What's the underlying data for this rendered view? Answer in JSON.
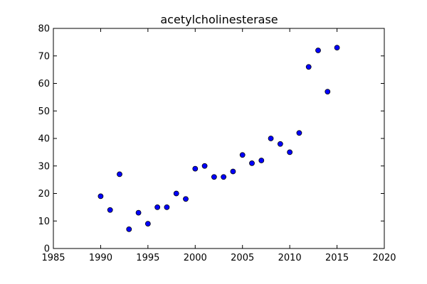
{
  "chart_data": {
    "type": "scatter",
    "title": "acetylcholinesterase",
    "xlabel": "",
    "ylabel": "",
    "xlim": [
      1985,
      2020
    ],
    "ylim": [
      0,
      80
    ],
    "xticks": [
      1985,
      1990,
      1995,
      2000,
      2005,
      2010,
      2015,
      2020
    ],
    "yticks": [
      0,
      10,
      20,
      30,
      40,
      50,
      60,
      70,
      80
    ],
    "grid": false,
    "marker_color": "#0000ff",
    "marker_edge_color": "#000000",
    "points": [
      {
        "x": 1990,
        "y": 19
      },
      {
        "x": 1991,
        "y": 14
      },
      {
        "x": 1992,
        "y": 27
      },
      {
        "x": 1993,
        "y": 7
      },
      {
        "x": 1994,
        "y": 13
      },
      {
        "x": 1995,
        "y": 9
      },
      {
        "x": 1996,
        "y": 15
      },
      {
        "x": 1997,
        "y": 15
      },
      {
        "x": 1998,
        "y": 20
      },
      {
        "x": 1999,
        "y": 18
      },
      {
        "x": 2000,
        "y": 29
      },
      {
        "x": 2001,
        "y": 30
      },
      {
        "x": 2002,
        "y": 26
      },
      {
        "x": 2003,
        "y": 26
      },
      {
        "x": 2004,
        "y": 28
      },
      {
        "x": 2005,
        "y": 34
      },
      {
        "x": 2006,
        "y": 31
      },
      {
        "x": 2007,
        "y": 32
      },
      {
        "x": 2008,
        "y": 40
      },
      {
        "x": 2009,
        "y": 38
      },
      {
        "x": 2010,
        "y": 35
      },
      {
        "x": 2011,
        "y": 42
      },
      {
        "x": 2012,
        "y": 66
      },
      {
        "x": 2013,
        "y": 72
      },
      {
        "x": 2014,
        "y": 57
      },
      {
        "x": 2015,
        "y": 73
      }
    ]
  }
}
